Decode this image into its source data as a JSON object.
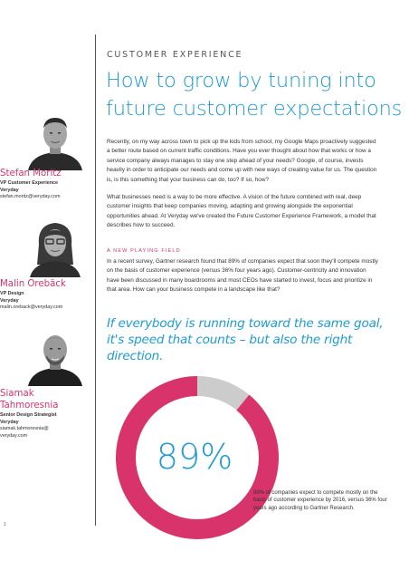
{
  "section_label": "CUSTOMER EXPERIENCE",
  "headline": "How to grow by tuning into future customer expectations",
  "paragraphs": [
    "Recently, on my way across town to pick up the kids from school, my Google Maps proactively suggested a better route based on current traffic conditions. Have you ever thought about how that works or how a service company always manages to stay one step ahead of your needs? Google, of course, invests heavily in order to anticipate our needs and come up with new ways of creating value for us. The question is, is this something that your business can do, too? If so, how?",
    "What businesses need is a way to be more effective. A vision of the future combined with real, deep customer insights that keep companies moving, adapting and growing alongside the exponential opportunities ahead. At Veryday we've created the Future Customer Experience Framework, a model that describes how to succeed.",
    "In a recent survey, Gartner research found that 89% of companies expect that soon they'll compete mostly on the basis of customer experience (versus 36% four years ago). Customer-centricity and innovation have been discussed in many boardrooms and most CEOs have started to invest, focus and prioritize in that area. How can your business compete in a landscape like that?"
  ],
  "subheading": "A NEW PLAYING FIELD",
  "quote": "If everybody is running toward the same goal, it's speed that counts – but also the right direction.",
  "stat": {
    "value": 89,
    "label": "89%",
    "caption": "89% of companies expect to compete mostly on the basis of customer experience by 2016, versus 36% four years ago according to Gartner Research.",
    "colors": {
      "highlight": "#d8336b",
      "remainder": "#cccccc",
      "text": "#1e9bd7"
    }
  },
  "people": [
    {
      "name": "Stefan Moritz",
      "title": "VP Customer Experience",
      "company": "Veryday",
      "email": "stefan.moritz@veryday.com"
    },
    {
      "name": "Malin Orebäck",
      "title": "VP Design",
      "company": "Veryday",
      "email": "malin.oreback@veryday.com"
    },
    {
      "name": "Siamak Tahmoresnia",
      "title": "Senior Design Strategist",
      "company": "Veryday",
      "email": "siamak.tahmoresnia@ veryday.com"
    }
  ],
  "page_number": "1",
  "colors": {
    "accent_blue": "#1e9bd7",
    "accent_pink": "#d8336b"
  }
}
